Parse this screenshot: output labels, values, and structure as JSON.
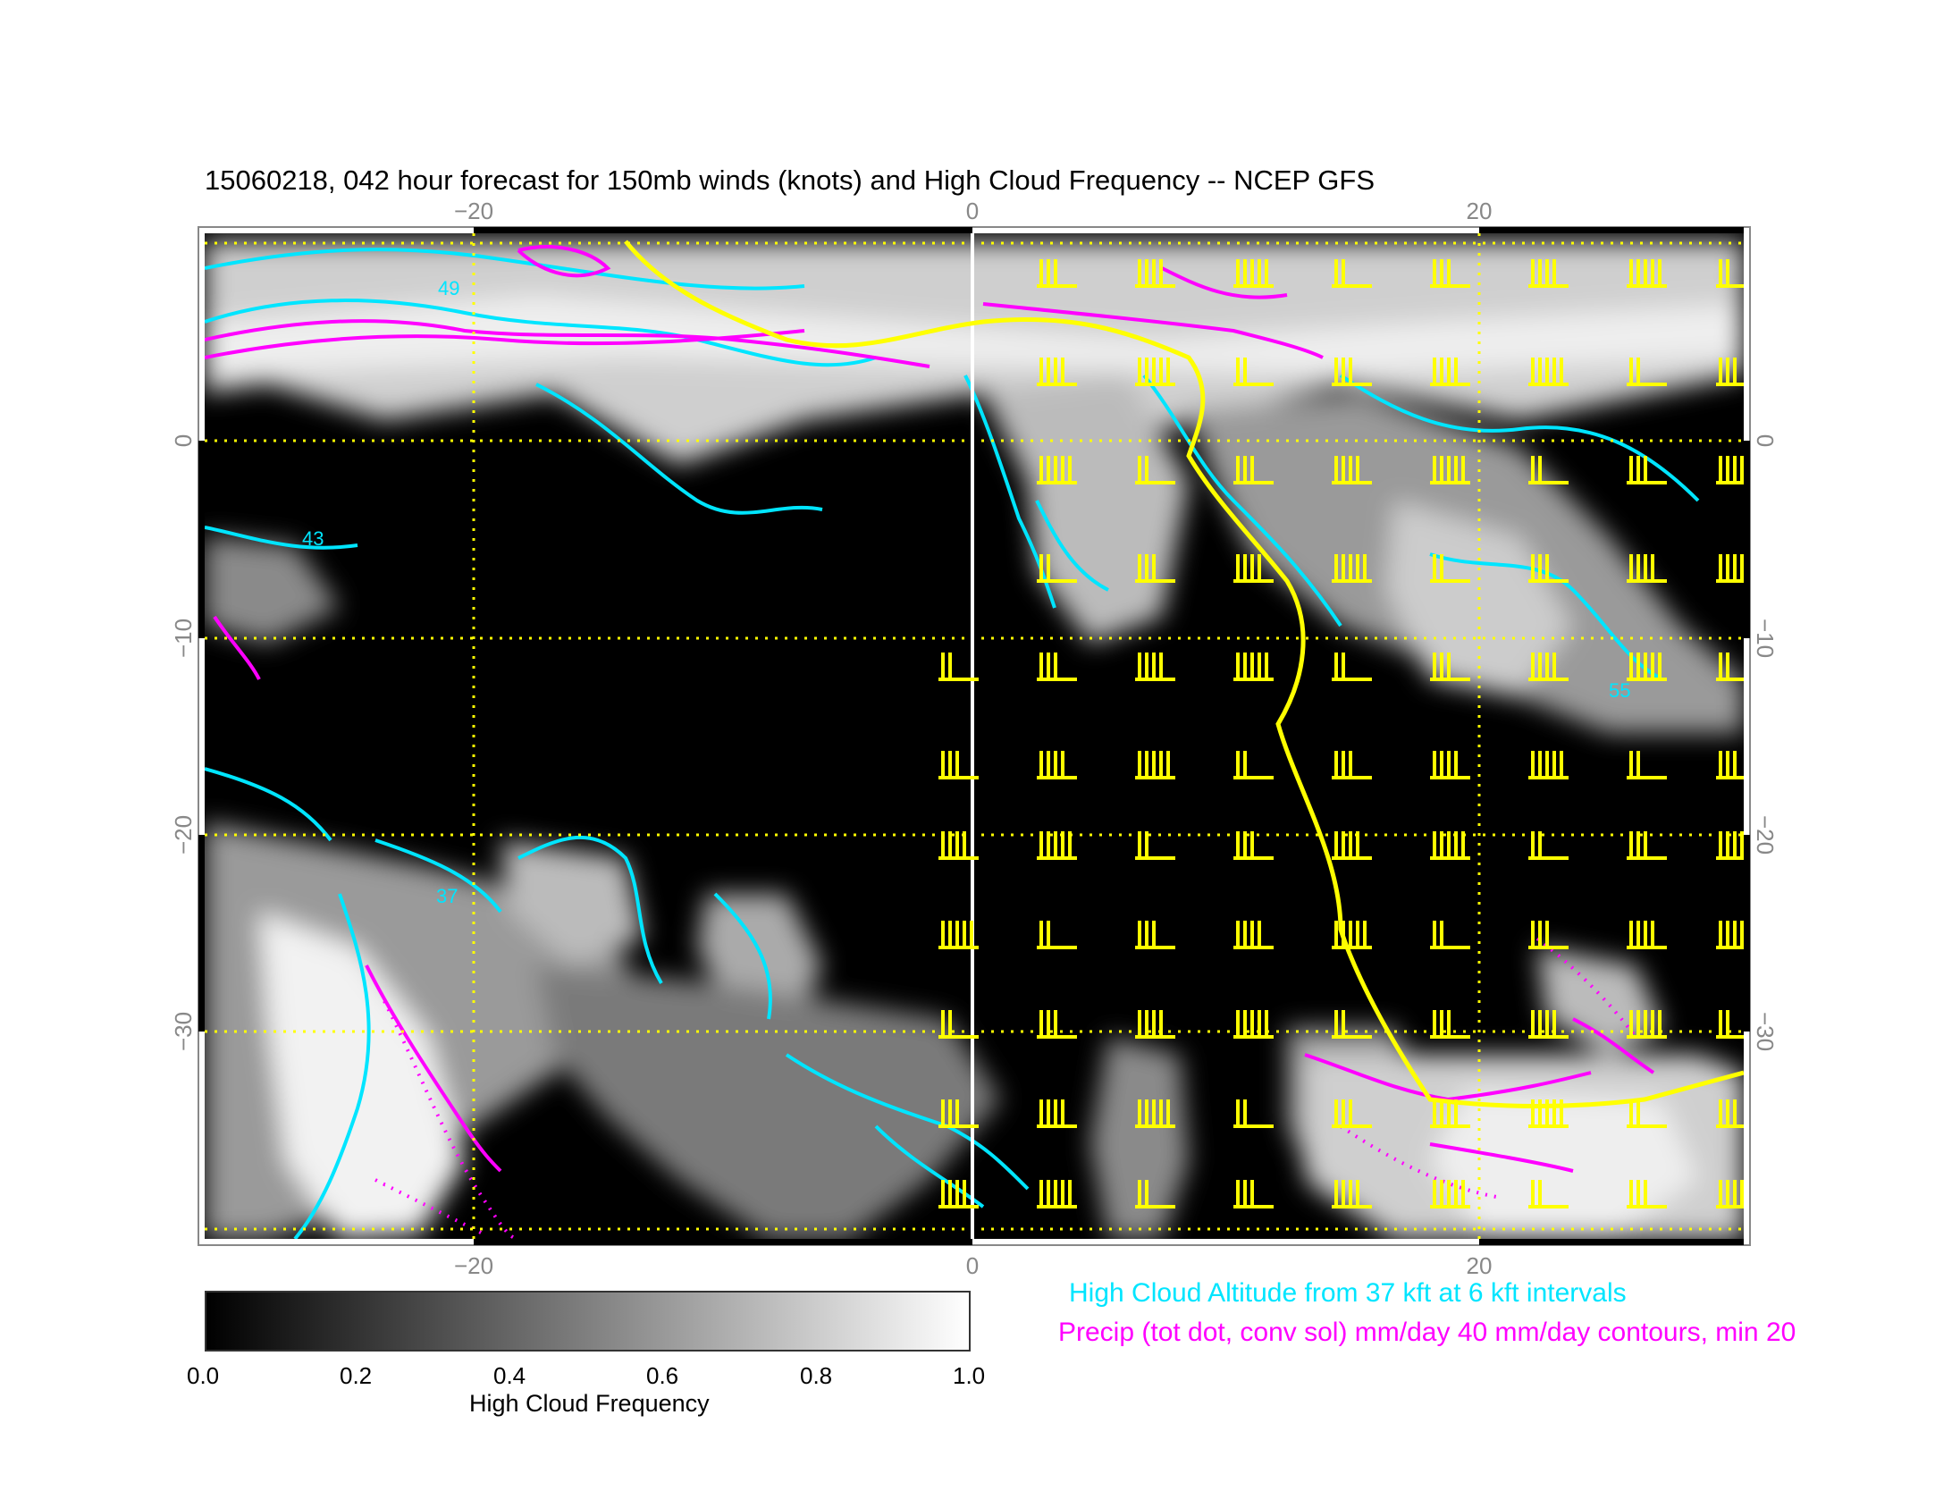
{
  "title": "15060218, 042 hour forecast for 150mb winds (knots) and High Cloud Frequency -- NCEP GFS",
  "map": {
    "lon_range": [
      -31,
      31
    ],
    "lat_range": [
      -41,
      11
    ],
    "x_tick_labels": [
      "−20",
      "0",
      "20"
    ],
    "y_tick_labels": [
      "0",
      "−10",
      "−20",
      "−30"
    ],
    "x_ticks": [
      -20,
      0,
      20
    ],
    "y_ticks": [
      0,
      -10,
      -20,
      -30
    ],
    "grid_color": "#ffff00",
    "wind_color": "#ffff00",
    "cloud_altitude_color": "#00e5ff",
    "precip_color": "#ff00ff",
    "contour_labels": [
      "49",
      "43",
      "37",
      "55"
    ]
  },
  "colorbar": {
    "title": "High Cloud Frequency",
    "range": [
      0.0,
      1.0
    ],
    "tick_labels": [
      "0.0",
      "0.2",
      "0.4",
      "0.6",
      "0.8",
      "1.0"
    ],
    "colors": [
      "#000000",
      "#ffffff"
    ]
  },
  "legend": {
    "cyan_text": "High Cloud Altitude from 37 kft at 6 kft intervals",
    "magenta_text": "Precip (tot dot, conv sol) mm/day 40 mm/day contours, min 20",
    "cyan_color": "#00e5ff",
    "magenta_color": "#ff00ff"
  }
}
